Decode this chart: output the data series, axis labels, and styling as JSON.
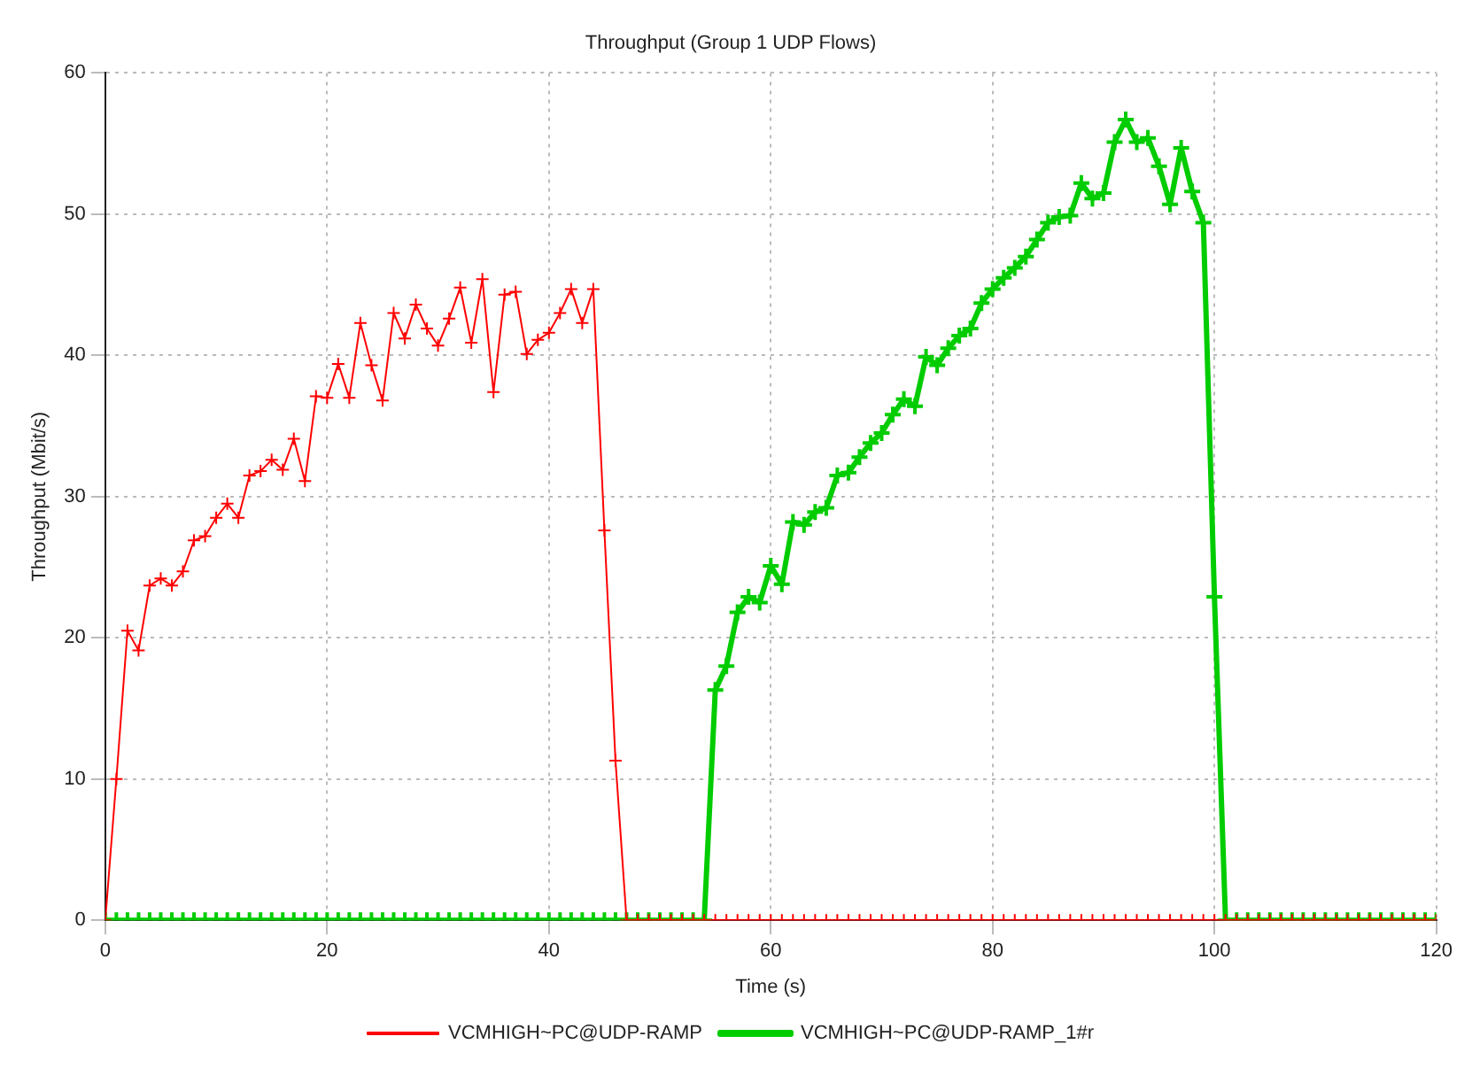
{
  "chart_data": {
    "type": "line",
    "title": "Throughput (Group 1 UDP Flows)",
    "xlabel": "Time (s)",
    "ylabel": "Throughput (Mbit/s)",
    "x": [
      0,
      1,
      2,
      3,
      4,
      5,
      6,
      7,
      8,
      9,
      10,
      11,
      12,
      13,
      14,
      15,
      16,
      17,
      18,
      19,
      20,
      21,
      22,
      23,
      24,
      25,
      26,
      27,
      28,
      29,
      30,
      31,
      32,
      33,
      34,
      35,
      36,
      37,
      38,
      39,
      40,
      41,
      42,
      43,
      44,
      45,
      46,
      47,
      48,
      49,
      50,
      51,
      52,
      53,
      54,
      55,
      56,
      57,
      58,
      59,
      60,
      61,
      62,
      63,
      64,
      65,
      66,
      67,
      68,
      69,
      70,
      71,
      72,
      73,
      74,
      75,
      76,
      77,
      78,
      79,
      80,
      81,
      82,
      83,
      84,
      85,
      86,
      87,
      88,
      89,
      90,
      91,
      92,
      93,
      94,
      95,
      96,
      97,
      98,
      99,
      100,
      101,
      102,
      103,
      104,
      105,
      106,
      107,
      108,
      109,
      110,
      111,
      112,
      113,
      114,
      115,
      116,
      117,
      118,
      119,
      120
    ],
    "series": [
      {
        "name": "VCMHIGH~PC@UDP-RAMP",
        "color": "#ff0000",
        "values": [
          0,
          10,
          20.5,
          19.1,
          23.7,
          24.2,
          23.7,
          24.7,
          26.9,
          27.2,
          28.5,
          29.5,
          28.5,
          31.5,
          31.8,
          32.6,
          31.9,
          34.1,
          31.1,
          37.1,
          37.0,
          39.4,
          37.0,
          42.3,
          39.3,
          36.8,
          43.0,
          41.2,
          43.6,
          41.9,
          40.7,
          42.6,
          44.8,
          40.9,
          45.4,
          37.4,
          44.3,
          44.5,
          40.1,
          41.1,
          41.6,
          43.0,
          44.7,
          42.3,
          44.7,
          27.6,
          11.3,
          0,
          0,
          0,
          0,
          0,
          0,
          0,
          0,
          0,
          0,
          0,
          0,
          0,
          0,
          0,
          0,
          0,
          0,
          0,
          0,
          0,
          0,
          0,
          0,
          0,
          0,
          0,
          0,
          0,
          0,
          0,
          0,
          0,
          0,
          0,
          0,
          0,
          0,
          0,
          0,
          0,
          0,
          0,
          0,
          0,
          0,
          0,
          0,
          0,
          0,
          0,
          0,
          0,
          0,
          0,
          0,
          0,
          0,
          0,
          0,
          0,
          0,
          0,
          0,
          0,
          0,
          0,
          0,
          0,
          0,
          0,
          0,
          0,
          0
        ]
      },
      {
        "name": "VCMHIGH~PC@UDP-RAMP_1#r",
        "color": "#00cc00",
        "values": [
          0,
          0,
          0,
          0,
          0,
          0,
          0,
          0,
          0,
          0,
          0,
          0,
          0,
          0,
          0,
          0,
          0,
          0,
          0,
          0,
          0,
          0,
          0,
          0,
          0,
          0,
          0,
          0,
          0,
          0,
          0,
          0,
          0,
          0,
          0,
          0,
          0,
          0,
          0,
          0,
          0,
          0,
          0,
          0,
          0,
          0,
          0,
          0,
          0,
          0,
          0,
          0,
          0,
          0,
          0,
          16.3,
          18.0,
          21.8,
          22.9,
          22.5,
          25.1,
          23.8,
          28.2,
          28.0,
          28.9,
          29.2,
          31.5,
          31.7,
          32.8,
          33.8,
          34.5,
          35.8,
          36.9,
          36.4,
          39.9,
          39.3,
          40.5,
          41.4,
          41.9,
          43.7,
          44.7,
          45.5,
          46.2,
          47.0,
          48.2,
          49.4,
          49.8,
          49.9,
          52.2,
          51.1,
          51.5,
          55.1,
          56.7,
          55.1,
          55.4,
          53.4,
          50.7,
          54.7,
          51.6,
          49.4,
          22.9,
          0,
          0,
          0,
          0,
          0,
          0,
          0,
          0,
          0,
          0,
          0,
          0,
          0,
          0,
          0,
          0,
          0,
          0,
          0,
          0
        ]
      }
    ],
    "xlim": [
      0,
      120
    ],
    "xticks": [
      0,
      20,
      40,
      60,
      80,
      100,
      120
    ],
    "ylim": [
      0,
      60
    ],
    "yticks": [
      0,
      10,
      20,
      30,
      40,
      50,
      60
    ],
    "grid": true,
    "legend": "bottom",
    "marker": "cross",
    "line_style": "solid"
  }
}
